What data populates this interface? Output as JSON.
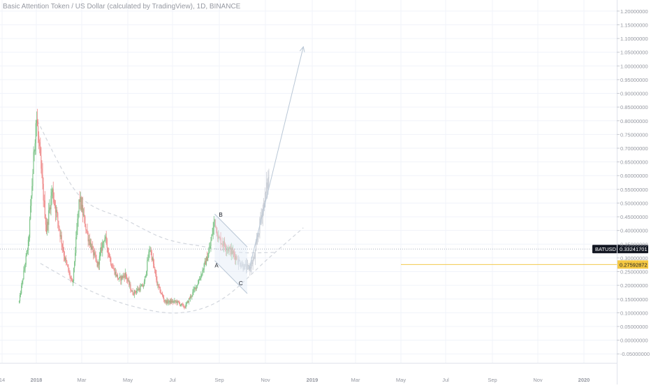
{
  "title": "Basic Attention Token / US Dollar (calculated by TradingView), 1D, BINANCE",
  "colors": {
    "up": "#7ec58a",
    "down": "#ef8c8c",
    "projection": "#c9ced6",
    "dashed": "#d2d6dd",
    "arrow": "#b9c7d6",
    "price_label_bg": "#131722",
    "level_label_bg": "#f5c842",
    "level_line": "#f2c94c",
    "axis_text": "#9598a1"
  },
  "chart_data": {
    "type": "candlestick",
    "title": "Basic Attention Token / US Dollar (calculated by TradingView), 1D, BINANCE",
    "x_ticks": [
      "14",
      "2018",
      "Mar",
      "May",
      "Jul",
      "Sep",
      "Nov",
      "2019",
      "Mar",
      "May",
      "Jul",
      "Sep",
      "Nov",
      "2020"
    ],
    "y_ticks": [
      "1.20000000",
      "1.15000000",
      "1.10000000",
      "1.05000000",
      "1.00000000",
      "0.95000000",
      "0.90000000",
      "0.85000000",
      "0.80000000",
      "0.75000000",
      "0.70000000",
      "0.65000000",
      "0.60000000",
      "0.55000000",
      "0.50000000",
      "0.45000000",
      "0.40000000",
      "0.35000000",
      "0.30000000",
      "0.25000000",
      "0.20000000",
      "0.15000000",
      "0.10000000",
      "0.05000000",
      "0.00000000",
      "-0.05000000"
    ],
    "ylim": [
      -0.052,
      1.22
    ],
    "price_anchors": [
      {
        "date": "2017-11-25",
        "price": 0.14
      },
      {
        "date": "2017-12-20",
        "price": 0.36
      },
      {
        "date": "2018-01-09",
        "price": 0.82
      },
      {
        "date": "2018-02-05",
        "price": 0.4
      },
      {
        "date": "2018-02-20",
        "price": 0.55
      },
      {
        "date": "2018-03-25",
        "price": 0.3
      },
      {
        "date": "2018-04-15",
        "price": 0.2
      },
      {
        "date": "2018-05-03",
        "price": 0.52
      },
      {
        "date": "2018-05-25",
        "price": 0.38
      },
      {
        "date": "2018-06-20",
        "price": 0.27
      },
      {
        "date": "2018-07-08",
        "price": 0.38
      },
      {
        "date": "2018-07-28",
        "price": 0.27
      },
      {
        "date": "2018-08-15",
        "price": 0.22
      },
      {
        "date": "2018-09-01",
        "price": 0.24
      },
      {
        "date": "2018-09-20",
        "price": 0.17
      },
      {
        "date": "2018-10-20",
        "price": 0.2
      },
      {
        "date": "2018-11-05",
        "price": 0.34
      },
      {
        "date": "2018-11-25",
        "price": 0.2
      },
      {
        "date": "2018-12-15",
        "price": 0.14
      },
      {
        "date": "2019-01-15",
        "price": 0.14
      },
      {
        "date": "2019-02-05",
        "price": 0.12
      },
      {
        "date": "2019-02-25",
        "price": 0.17
      },
      {
        "date": "2019-03-15",
        "price": 0.22
      },
      {
        "date": "2019-04-10",
        "price": 0.32
      },
      {
        "date": "2019-04-25",
        "price": 0.44
      },
      {
        "date": "2019-05-05",
        "price": 0.37
      },
      {
        "date": "2019-05-20",
        "price": 0.35
      },
      {
        "date": "2019-06-10",
        "price": 0.32
      },
      {
        "date": "2019-06-22",
        "price": 0.3
      }
    ],
    "projection_anchors": [
      {
        "date": "2019-06-25",
        "price": 0.29
      },
      {
        "date": "2019-07-10",
        "price": 0.27
      },
      {
        "date": "2019-07-25",
        "price": 0.26
      },
      {
        "date": "2019-08-08",
        "price": 0.3
      },
      {
        "date": "2019-08-25",
        "price": 0.45
      },
      {
        "date": "2019-09-05",
        "price": 0.52
      },
      {
        "date": "2019-09-15",
        "price": 0.6
      }
    ],
    "curves": [
      {
        "name": "upper-arc",
        "points": [
          {
            "date": "2018-01-12",
            "price": 0.8
          },
          {
            "date": "2018-05-01",
            "price": 0.53
          },
          {
            "date": "2018-09-01",
            "price": 0.44
          },
          {
            "date": "2018-12-15",
            "price": 0.37
          },
          {
            "date": "2019-04-01",
            "price": 0.34
          },
          {
            "date": "2019-07-01",
            "price": 0.32
          },
          {
            "date": "2019-10-01",
            "price": 0.32
          }
        ]
      },
      {
        "name": "lower-arc",
        "points": [
          {
            "date": "2018-01-20",
            "price": 0.28
          },
          {
            "date": "2018-06-01",
            "price": 0.18
          },
          {
            "date": "2018-10-01",
            "price": 0.12
          },
          {
            "date": "2019-01-25",
            "price": 0.1
          },
          {
            "date": "2019-05-15",
            "price": 0.15
          },
          {
            "date": "2019-09-15",
            "price": 0.3
          },
          {
            "date": "2019-12-15",
            "price": 0.41
          }
        ]
      }
    ],
    "wedge": {
      "upper": [
        {
          "date": "2019-04-25",
          "price": 0.46
        },
        {
          "date": "2019-07-20",
          "price": 0.34
        }
      ],
      "lower": [
        {
          "date": "2019-04-25",
          "price": 0.29
        },
        {
          "date": "2019-07-20",
          "price": 0.17
        }
      ]
    },
    "arrow": {
      "from": {
        "date": "2019-07-25",
        "price": 0.26
      },
      "to": {
        "date": "2019-12-15",
        "price": 1.07
      }
    },
    "abc_labels": [
      {
        "label": "A",
        "date": "2019-04-30",
        "price": 0.265
      },
      {
        "label": "B",
        "date": "2019-05-11",
        "price": 0.45
      },
      {
        "label": "C",
        "date": "2019-07-03",
        "price": 0.2
      }
    ],
    "current_price": {
      "symbol": "BATUSD",
      "value": "0.33241701",
      "price": 0.3324
    },
    "level": {
      "value": "0.27592872",
      "price": 0.2759
    }
  }
}
